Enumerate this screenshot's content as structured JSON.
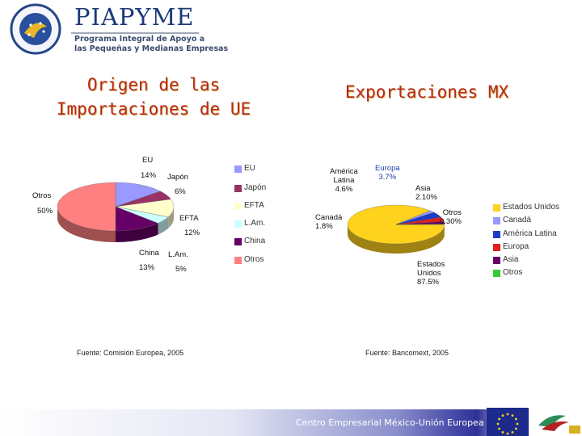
{
  "header": {
    "logo_title": "PIAPYME",
    "logo_subtitle_1": "Programa Integral de Apoyo a",
    "logo_subtitle_2": "las Pequeñas y Medianas Empresas",
    "emblem_text": "México-Unión Europea · Centro Empresarial"
  },
  "slide": {
    "title_left_1": "Origen de las",
    "title_left_2": "Importaciones de UE",
    "title_right": "Exportaciones MX"
  },
  "chart_data": [
    {
      "type": "pie",
      "variant": "3d",
      "title": "Origen de las Importaciones de UE",
      "categories": [
        "EU",
        "Japón",
        "EFTA",
        "L.Am.",
        "China",
        "Otros"
      ],
      "values": [
        14,
        6,
        12,
        5,
        13,
        50
      ],
      "value_labels": [
        "14%",
        "6%",
        "12%",
        "5%",
        "13%",
        "50%"
      ],
      "colors": [
        "#9999ff",
        "#993366",
        "#ffffcc",
        "#ccffff",
        "#660066",
        "#ff8080"
      ],
      "legend": {
        "position": "right",
        "entries": [
          "EU",
          "Japón",
          "EFTA",
          "L.Am.",
          "China",
          "Otros"
        ]
      },
      "source": "Fuente: Comisión Europea, 2005"
    },
    {
      "type": "pie",
      "variant": "3d",
      "title": "Exportaciones MX",
      "categories": [
        "Estados Unidos",
        "Canadá",
        "América Latina",
        "Europa",
        "Asia",
        "Otros"
      ],
      "values": [
        87.5,
        1.8,
        4.6,
        3.7,
        2.1,
        0.3
      ],
      "slice_labels": [
        [
          "Estados",
          "Unidos",
          "87.5%"
        ],
        [
          "Canadá",
          "1.8%"
        ],
        [
          "América",
          "Latina",
          "4.6%"
        ],
        [
          "Europa",
          "3.7%"
        ],
        [
          "Asia",
          "2.10%"
        ],
        [
          "Otros",
          "0.30%"
        ]
      ],
      "colors": [
        "#ffd21e",
        "#9999ff",
        "#1e3cc8",
        "#e0201a",
        "#660066",
        "#33cc33"
      ],
      "legend": {
        "position": "right",
        "entries": [
          "Estados Unidos",
          "Canadá",
          "América Latina",
          "Europa",
          "Asia",
          "Otros"
        ]
      },
      "source": "Fuente: Bancomext, 2005"
    }
  ],
  "footer": {
    "text": "Centro Empresarial México-Unión Europea"
  }
}
